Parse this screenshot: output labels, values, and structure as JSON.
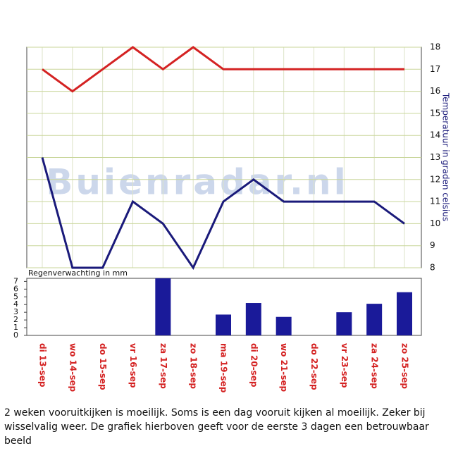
{
  "chart_data": [
    {
      "type": "line",
      "ylabel": "Temperatuur in graden celsius",
      "ylim": [
        8,
        18
      ],
      "yticks": [
        8,
        9,
        10,
        11,
        12,
        13,
        14,
        15,
        16,
        17,
        18
      ],
      "grid": true,
      "series": [
        {
          "color": "#d42222",
          "values": [
            17,
            16,
            17,
            18,
            17,
            18,
            17,
            17,
            17,
            17,
            17,
            17,
            17
          ]
        },
        {
          "color": "#1a1a7a",
          "values": [
            13,
            8,
            8,
            11,
            10,
            8,
            11,
            12,
            11,
            11,
            11,
            11,
            10
          ]
        }
      ]
    },
    {
      "type": "bar",
      "ylabel": "Regenverwachting in mm",
      "categories": [
        "di 13-sep",
        "wo 14-sep",
        "do 15-sep",
        "vr 16-sep",
        "za 17-sep",
        "zo 18-sep",
        "ma 19-sep",
        "di 20-sep",
        "wo 21-sep",
        "do 22-sep",
        "vr 23-sep",
        "za 24-sep",
        "zo 25-sep"
      ],
      "values": [
        0,
        0,
        0,
        0,
        7.4,
        0,
        2.7,
        4.2,
        2.4,
        0,
        3.0,
        4.1,
        5.6
      ],
      "color": "#1a1a99",
      "category_color": "#d42222",
      "ylim": [
        0,
        7.4
      ],
      "yticks": [
        0,
        1,
        2,
        3,
        4,
        5,
        6,
        7
      ]
    }
  ],
  "watermark": "Buienradar.nl",
  "caption": "2 weken vooruitkijken is moeilijk. Soms is een dag vooruit kijken al moeilijk. Zeker bij wisselvalig weer. De grafiek hierboven geeft voor de eerste 3 dagen een betrouwbaar beeld"
}
